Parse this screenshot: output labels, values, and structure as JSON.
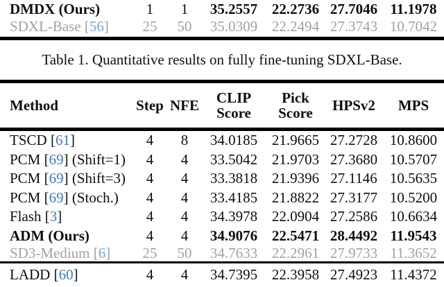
{
  "colors": {
    "citation_blue": "#3d7abf",
    "muted_row_gray": "#a1a1a1",
    "text_black": "#0e0e0e",
    "rule_black": "#000000"
  },
  "table1_fragment": {
    "rows": [
      {
        "method": "DMDX (Ours)",
        "cite": null,
        "suffix": "",
        "step": "1",
        "nfe": "1",
        "clip": "35.2557",
        "pick": "22.2736",
        "hpsv2": "27.7046",
        "mps": "11.1978",
        "method_bold": true,
        "values_bold": true,
        "gray": false
      },
      {
        "method": "SDXL-Base",
        "cite": "56",
        "suffix": "",
        "step": "25",
        "nfe": "50",
        "clip": "35.0309",
        "pick": "22.2494",
        "hpsv2": "27.3743",
        "mps": "10.7042",
        "method_bold": false,
        "values_bold": false,
        "gray": true
      }
    ]
  },
  "table1_caption": "Table 1. Quantitative results on fully fine-tuning SDXL-Base.",
  "table2": {
    "headers": {
      "method": "Method",
      "step": "Step",
      "nfe": "NFE",
      "clip": [
        "CLIP",
        "Score"
      ],
      "pick": [
        "Pick",
        "Score"
      ],
      "hpsv2": "HPSv2",
      "mps": "MPS"
    },
    "rows": [
      {
        "method": "TSCD",
        "cite": "61",
        "suffix": "",
        "step": "4",
        "nfe": "8",
        "clip": "34.0185",
        "pick": "21.9665",
        "hpsv2": "27.2728",
        "mps": "10.8600",
        "method_bold": false,
        "values_bold": false,
        "gray": false
      },
      {
        "method": "PCM",
        "cite": "69",
        "suffix": " (Shift=1)",
        "step": "4",
        "nfe": "4",
        "clip": "33.5042",
        "pick": "21.9703",
        "hpsv2": "27.3680",
        "mps": "10.5707",
        "method_bold": false,
        "values_bold": false,
        "gray": false
      },
      {
        "method": "PCM",
        "cite": "69",
        "suffix": " (Shift=3)",
        "step": "4",
        "nfe": "4",
        "clip": "33.3818",
        "pick": "21.9396",
        "hpsv2": "27.1146",
        "mps": "10.5635",
        "method_bold": false,
        "values_bold": false,
        "gray": false
      },
      {
        "method": "PCM",
        "cite": "69",
        "suffix": " (Stoch.)",
        "step": "4",
        "nfe": "4",
        "clip": "33.4185",
        "pick": "21.8822",
        "hpsv2": "27.3177",
        "mps": "10.5200",
        "method_bold": false,
        "values_bold": false,
        "gray": false
      },
      {
        "method": "Flash",
        "cite": "3",
        "suffix": "",
        "step": "4",
        "nfe": "4",
        "clip": "34.3978",
        "pick": "22.0904",
        "hpsv2": "27.2586",
        "mps": "10.6634",
        "method_bold": false,
        "values_bold": false,
        "gray": false
      },
      {
        "method": "ADM (Ours)",
        "cite": null,
        "suffix": "",
        "step": "4",
        "nfe": "4",
        "clip": "34.9076",
        "pick": "22.5471",
        "hpsv2": "28.4492",
        "mps": "11.9543",
        "method_bold": true,
        "values_bold": true,
        "gray": false
      },
      {
        "method": "SD3-Medium",
        "cite": "6",
        "suffix": "",
        "step": "25",
        "nfe": "50",
        "clip": "34.7633",
        "pick": "22.2961",
        "hpsv2": "27.9733",
        "mps": "11.3652",
        "method_bold": false,
        "values_bold": false,
        "gray": true
      },
      {
        "method": "LADD",
        "cite": "60",
        "suffix": "",
        "step": "4",
        "nfe": "4",
        "clip": "34.7395",
        "pick": "22.3958",
        "hpsv2": "27.4923",
        "mps": "11.4372",
        "method_bold": false,
        "values_bold": false,
        "gray": false,
        "rule_before": true
      }
    ]
  }
}
